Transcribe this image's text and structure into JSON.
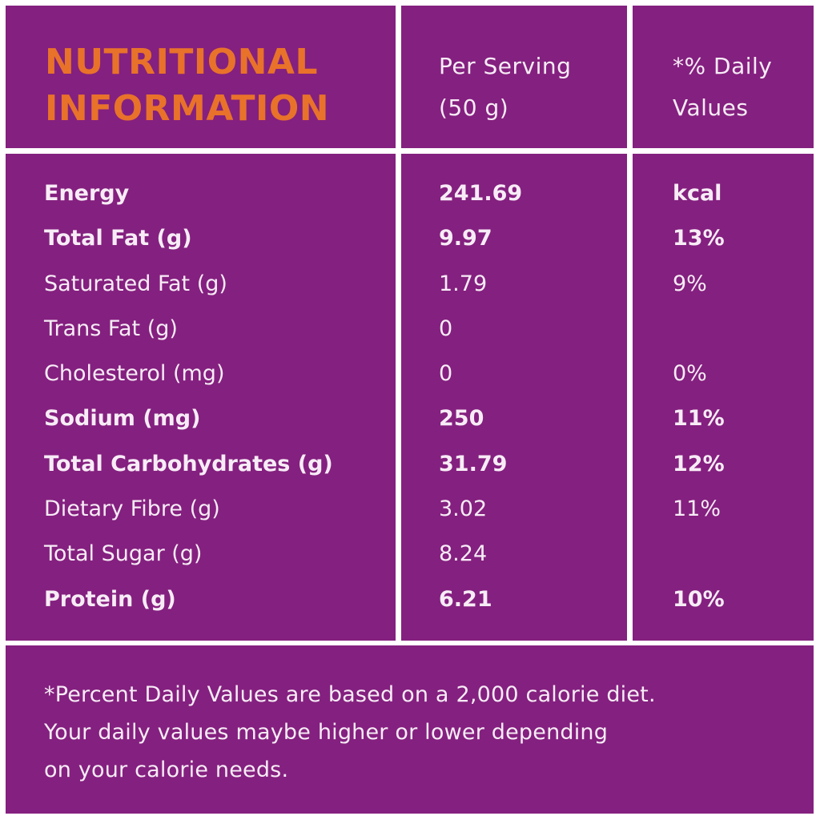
{
  "colors": {
    "panel_bg": "#84207f",
    "gap_bg": "#ffffff",
    "title": "#e8722a",
    "text": "#f7ecf6"
  },
  "header": {
    "title_line1": "NUTRITIONAL",
    "title_line2": "INFORMATION",
    "serving_line1": "Per Serving",
    "serving_line2": "(50 g)",
    "dv_line1": "*% Daily",
    "dv_line2": "Values"
  },
  "rows": [
    {
      "name": "Energy",
      "value": "241.69",
      "dv": "kcal",
      "bold": true
    },
    {
      "name": "Total Fat (g)",
      "value": "9.97",
      "dv": "13%",
      "bold": true
    },
    {
      "name": "Saturated Fat (g)",
      "value": "1.79",
      "dv": "9%",
      "bold": false
    },
    {
      "name": "Trans Fat (g)",
      "value": "0",
      "dv": "",
      "bold": false
    },
    {
      "name": "Cholesterol (mg)",
      "value": "0",
      "dv": "0%",
      "bold": false
    },
    {
      "name": "Sodium (mg)",
      "value": "250",
      "dv": "11%",
      "bold": true
    },
    {
      "name": "Total Carbohydrates (g)",
      "value": "31.79",
      "dv": "12%",
      "bold": true
    },
    {
      "name": "Dietary Fibre (g)",
      "value": "3.02",
      "dv": "11%",
      "bold": false
    },
    {
      "name": "Total Sugar (g)",
      "value": "8.24",
      "dv": "",
      "bold": false
    },
    {
      "name": "Protein (g)",
      "value": "6.21",
      "dv": "10%",
      "bold": true
    }
  ],
  "footer": {
    "line1": "*Percent Daily Values are based on a 2,000 calorie diet.",
    "line2": "Your daily values maybe higher or lower depending",
    "line3": "on your calorie needs."
  }
}
